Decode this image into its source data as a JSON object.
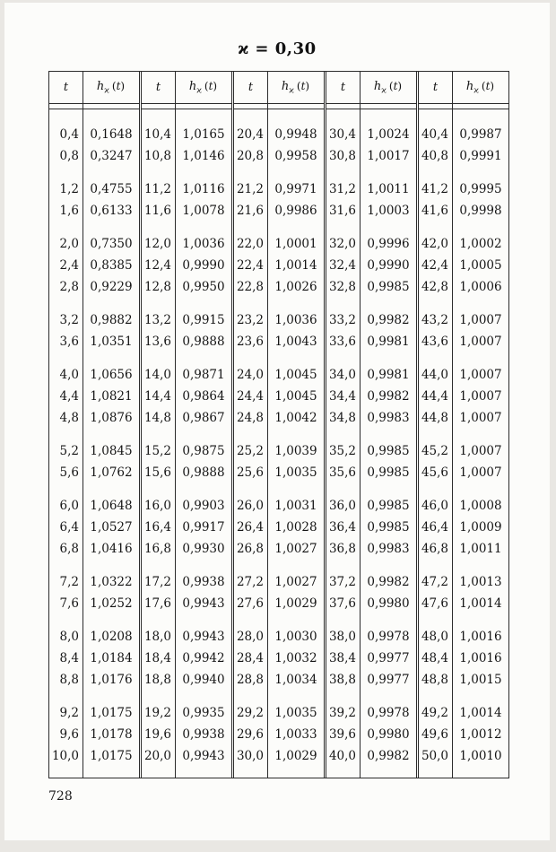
{
  "page": {
    "title": "ϰ = 0,30",
    "page_number": "728"
  },
  "table": {
    "col_header": {
      "t": "t",
      "h_base": "h",
      "h_sub": "ϰ",
      "h_open": "(",
      "h_arg_t": "t",
      "h_close": ")"
    },
    "cluster_sizes": [
      2,
      2,
      3,
      2,
      3,
      2,
      3,
      2,
      3,
      3
    ],
    "groups": [
      {
        "rows": [
          [
            "0,4",
            "0,1648"
          ],
          [
            "0,8",
            "0,3247"
          ],
          [
            "1,2",
            "0,4755"
          ],
          [
            "1,6",
            "0,6133"
          ],
          [
            "2,0",
            "0,7350"
          ],
          [
            "2,4",
            "0,8385"
          ],
          [
            "2,8",
            "0,9229"
          ],
          [
            "3,2",
            "0,9882"
          ],
          [
            "3,6",
            "1,0351"
          ],
          [
            "4,0",
            "1,0656"
          ],
          [
            "4,4",
            "1,0821"
          ],
          [
            "4,8",
            "1,0876"
          ],
          [
            "5,2",
            "1,0845"
          ],
          [
            "5,6",
            "1,0762"
          ],
          [
            "6,0",
            "1,0648"
          ],
          [
            "6,4",
            "1,0527"
          ],
          [
            "6,8",
            "1,0416"
          ],
          [
            "7,2",
            "1,0322"
          ],
          [
            "7,6",
            "1,0252"
          ],
          [
            "8,0",
            "1,0208"
          ],
          [
            "8,4",
            "1,0184"
          ],
          [
            "8,8",
            "1,0176"
          ],
          [
            "9,2",
            "1,0175"
          ],
          [
            "9,6",
            "1,0178"
          ],
          [
            "10,0",
            "1,0175"
          ]
        ]
      },
      {
        "rows": [
          [
            "10,4",
            "1,0165"
          ],
          [
            "10,8",
            "1,0146"
          ],
          [
            "11,2",
            "1,0116"
          ],
          [
            "11,6",
            "1,0078"
          ],
          [
            "12,0",
            "1,0036"
          ],
          [
            "12,4",
            "0,9990"
          ],
          [
            "12,8",
            "0,9950"
          ],
          [
            "13,2",
            "0,9915"
          ],
          [
            "13,6",
            "0,9888"
          ],
          [
            "14,0",
            "0,9871"
          ],
          [
            "14,4",
            "0,9864"
          ],
          [
            "14,8",
            "0,9867"
          ],
          [
            "15,2",
            "0,9875"
          ],
          [
            "15,6",
            "0,9888"
          ],
          [
            "16,0",
            "0,9903"
          ],
          [
            "16,4",
            "0,9917"
          ],
          [
            "16,8",
            "0,9930"
          ],
          [
            "17,2",
            "0,9938"
          ],
          [
            "17,6",
            "0,9943"
          ],
          [
            "18,0",
            "0,9943"
          ],
          [
            "18,4",
            "0,9942"
          ],
          [
            "18,8",
            "0,9940"
          ],
          [
            "19,2",
            "0,9935"
          ],
          [
            "19,6",
            "0,9938"
          ],
          [
            "20,0",
            "0,9943"
          ]
        ]
      },
      {
        "rows": [
          [
            "20,4",
            "0,9948"
          ],
          [
            "20,8",
            "0,9958"
          ],
          [
            "21,2",
            "0,9971"
          ],
          [
            "21,6",
            "0,9986"
          ],
          [
            "22,0",
            "1,0001"
          ],
          [
            "22,4",
            "1,0014"
          ],
          [
            "22,8",
            "1,0026"
          ],
          [
            "23,2",
            "1,0036"
          ],
          [
            "23,6",
            "1,0043"
          ],
          [
            "24,0",
            "1,0045"
          ],
          [
            "24,4",
            "1,0045"
          ],
          [
            "24,8",
            "1,0042"
          ],
          [
            "25,2",
            "1,0039"
          ],
          [
            "25,6",
            "1,0035"
          ],
          [
            "26,0",
            "1,0031"
          ],
          [
            "26,4",
            "1,0028"
          ],
          [
            "26,8",
            "1,0027"
          ],
          [
            "27,2",
            "1,0027"
          ],
          [
            "27,6",
            "1,0029"
          ],
          [
            "28,0",
            "1,0030"
          ],
          [
            "28,4",
            "1,0032"
          ],
          [
            "28,8",
            "1,0034"
          ],
          [
            "29,2",
            "1,0035"
          ],
          [
            "29,6",
            "1,0033"
          ],
          [
            "30,0",
            "1,0029"
          ]
        ]
      },
      {
        "rows": [
          [
            "30,4",
            "1,0024"
          ],
          [
            "30,8",
            "1,0017"
          ],
          [
            "31,2",
            "1,0011"
          ],
          [
            "31,6",
            "1,0003"
          ],
          [
            "32,0",
            "0,9996"
          ],
          [
            "32,4",
            "0,9990"
          ],
          [
            "32,8",
            "0,9985"
          ],
          [
            "33,2",
            "0,9982"
          ],
          [
            "33,6",
            "0,9981"
          ],
          [
            "34,0",
            "0,9981"
          ],
          [
            "34,4",
            "0,9982"
          ],
          [
            "34,8",
            "0,9983"
          ],
          [
            "35,2",
            "0,9985"
          ],
          [
            "35,6",
            "0,9985"
          ],
          [
            "36,0",
            "0,9985"
          ],
          [
            "36,4",
            "0,9985"
          ],
          [
            "36,8",
            "0,9983"
          ],
          [
            "37,2",
            "0,9982"
          ],
          [
            "37,6",
            "0,9980"
          ],
          [
            "38,0",
            "0,9978"
          ],
          [
            "38,4",
            "0,9977"
          ],
          [
            "38,8",
            "0,9977"
          ],
          [
            "39,2",
            "0,9978"
          ],
          [
            "39,6",
            "0,9980"
          ],
          [
            "40,0",
            "0,9982"
          ]
        ]
      },
      {
        "rows": [
          [
            "40,4",
            "0,9987"
          ],
          [
            "40,8",
            "0,9991"
          ],
          [
            "41,2",
            "0,9995"
          ],
          [
            "41,6",
            "0,9998"
          ],
          [
            "42,0",
            "1,0002"
          ],
          [
            "42,4",
            "1,0005"
          ],
          [
            "42,8",
            "1,0006"
          ],
          [
            "43,2",
            "1,0007"
          ],
          [
            "43,6",
            "1,0007"
          ],
          [
            "44,0",
            "1,0007"
          ],
          [
            "44,4",
            "1,0007"
          ],
          [
            "44,8",
            "1,0007"
          ],
          [
            "45,2",
            "1,0007"
          ],
          [
            "45,6",
            "1,0007"
          ],
          [
            "46,0",
            "1,0008"
          ],
          [
            "46,4",
            "1,0009"
          ],
          [
            "46,8",
            "1,0011"
          ],
          [
            "47,2",
            "1,0013"
          ],
          [
            "47,6",
            "1,0014"
          ],
          [
            "48,0",
            "1,0016"
          ],
          [
            "48,4",
            "1,0016"
          ],
          [
            "48,8",
            "1,0015"
          ],
          [
            "49,2",
            "1,0014"
          ],
          [
            "49,6",
            "1,0012"
          ],
          [
            "50,0",
            "1,0010"
          ]
        ]
      }
    ]
  }
}
